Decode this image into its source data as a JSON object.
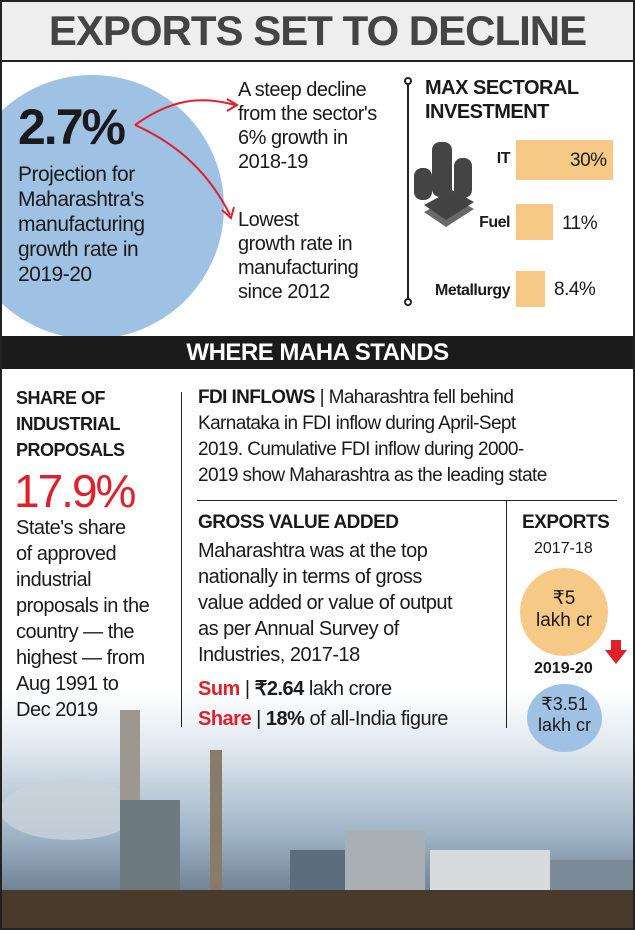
{
  "title": "EXPORTS SET TO DECLINE",
  "projection": {
    "value": "2.7%",
    "text": "Projection for\nMaharashtra's\nmanufacturing\ngrowth rate in\n2019-20"
  },
  "notes": [
    "A steep decline\nfrom the sector's\n6% growth in\n2018-19",
    "Lowest\ngrowth rate in\nmanufacturing\nsince 2012"
  ],
  "investment": {
    "title": "MAX SECTORAL\nINVESTMENT",
    "icon": "coins-and-cash-icon",
    "bar_color": "#f6c987",
    "chart_data": {
      "type": "bar",
      "categories": [
        "IT",
        "Fuel",
        "Metallurgy"
      ],
      "values": [
        30,
        11,
        8.4
      ],
      "labels": [
        "30%",
        "11%",
        "8.4%"
      ]
    }
  },
  "band": "WHERE MAHA STANDS",
  "proposals": {
    "title": "SHARE OF\nINDUSTRIAL\nPROPOSALS",
    "value": "17.9%",
    "text": "State's share\nof approved\nindustrial\nproposals in the\ncountry — the\nhighest — from\nAug 1991 to\nDec 2019"
  },
  "fdi": {
    "title": "FDI INFLOWS",
    "text": "Maharashtra fell behind\nKarnataka in FDI inflow during April-Sept\n2019. Cumulative FDI inflow during 2000-\n2019 show Maharashtra as the leading state"
  },
  "gva": {
    "title": "GROSS VALUE ADDED",
    "text": "Maharashtra was at the top\nnationally in terms of gross\nvalue added or value of output\nas per Annual Survey of\nIndustries, 2017-18",
    "sum_label": "Sum",
    "sum_value": "₹2.64",
    "sum_unit": " lakh crore",
    "share_label": "Share",
    "share_value": "18%",
    "share_unit": " of all-India figure"
  },
  "exports": {
    "title": "EXPORTS",
    "year1": "2017-18",
    "value1": "₹5\nlakh cr",
    "year2": "2019-20",
    "value2": "₹3.51\nlakh cr",
    "color1": "#f6c987",
    "color2": "#9fc1e3",
    "arrow": "down-arrow-icon"
  }
}
